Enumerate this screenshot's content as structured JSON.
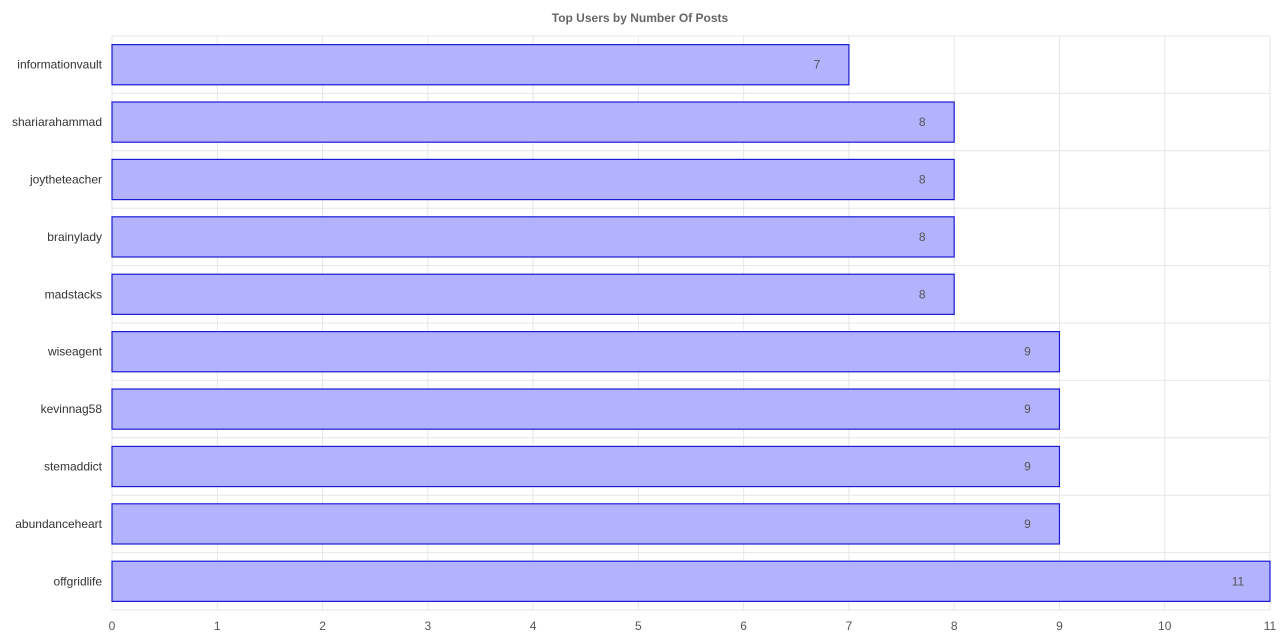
{
  "chart_data": {
    "type": "bar",
    "orientation": "horizontal",
    "title": "Top Users by Number Of Posts",
    "xlabel": "",
    "ylabel": "",
    "categories": [
      "informationvault",
      "shariarahammad",
      "joytheteacher",
      "brainylady",
      "madstacks",
      "wiseagent",
      "kevinnag58",
      "stemaddict",
      "abundanceheart",
      "offgridlife"
    ],
    "values": [
      7,
      8,
      8,
      8,
      8,
      9,
      9,
      9,
      9,
      11
    ],
    "data_labels": [
      "7",
      "8",
      "8",
      "8",
      "8",
      "9",
      "9",
      "9",
      "9",
      "11"
    ],
    "xlim": [
      0,
      11
    ],
    "xticks": [
      0,
      1,
      2,
      3,
      4,
      5,
      6,
      7,
      8,
      9,
      10,
      11
    ],
    "xtick_labels": [
      "0",
      "1",
      "2",
      "3",
      "4",
      "5",
      "6",
      "7",
      "8",
      "9",
      "10",
      "11"
    ],
    "grid": true,
    "legend": "none",
    "colors": {
      "bar_fill": "#b3b3fd",
      "bar_stroke": "#1a1ad6",
      "grid": "#e6e6e6",
      "title": "#666666"
    }
  }
}
